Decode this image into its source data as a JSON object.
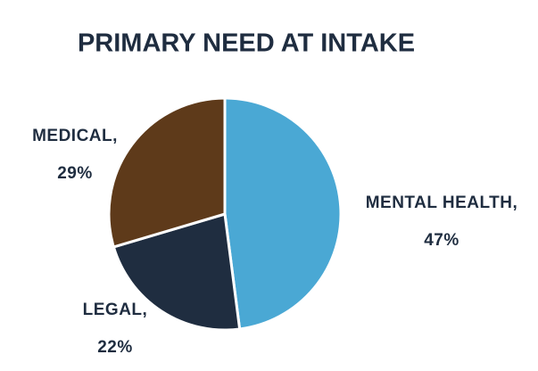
{
  "chart_data": {
    "type": "pie",
    "title": "PRIMARY NEED AT INTAKE",
    "categories": [
      "MENTAL HEALTH,",
      "LEGAL,",
      "MEDICAL,"
    ],
    "values": [
      47,
      22,
      29
    ],
    "value_labels": [
      "47%",
      "22%",
      "29%"
    ],
    "colors": [
      "#4aa8d4",
      "#1f2d40",
      "#5e3a1a"
    ]
  }
}
